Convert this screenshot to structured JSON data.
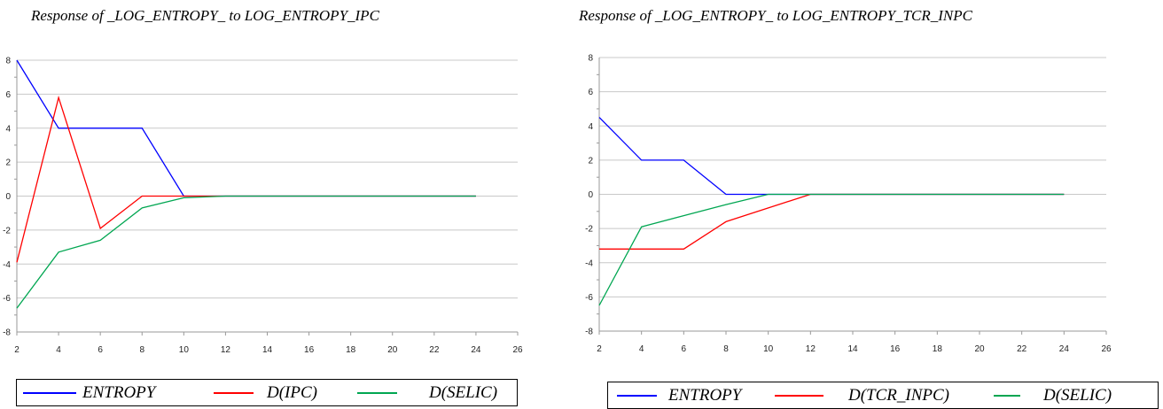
{
  "chart_data": [
    {
      "type": "line",
      "title": "Response of _LOG_ENTROPY_ to LOG_ENTROPY_IPC",
      "xlabel": "",
      "ylabel": "",
      "x": [
        2,
        4,
        6,
        8,
        10,
        12,
        14,
        16,
        18,
        20,
        22,
        24
      ],
      "xlim": [
        2,
        26
      ],
      "ylim": [
        -8,
        8
      ],
      "xticks": [
        "2",
        "4",
        "6",
        "8",
        "10",
        "12",
        "14",
        "16",
        "18",
        "20",
        "22",
        "24",
        "26"
      ],
      "yticks": [
        "8",
        "6",
        "4",
        "2",
        "0",
        "-2",
        "-4",
        "-6",
        "-8"
      ],
      "grid": "horizontal",
      "legend": "bottom",
      "series": [
        {
          "name": "ENTROPY",
          "color": "#0000ff",
          "values": [
            8,
            4,
            4,
            4,
            0,
            0,
            0,
            0,
            0,
            0,
            0,
            0
          ]
        },
        {
          "name": "D(IPC)",
          "color": "#ff0000",
          "values": [
            -3.9,
            5.8,
            -1.9,
            0,
            0,
            0,
            0,
            0,
            0,
            0,
            0,
            0
          ]
        },
        {
          "name": "D(SELIC)",
          "color": "#00a651",
          "values": [
            -6.6,
            -3.3,
            -2.6,
            -0.7,
            -0.1,
            0,
            0,
            0,
            0,
            0,
            0,
            0
          ]
        }
      ]
    },
    {
      "type": "line",
      "title": "Response of _LOG_ENTROPY_ to LOG_ENTROPY_TCR_INPC",
      "xlabel": "",
      "ylabel": "",
      "x": [
        2,
        4,
        6,
        8,
        10,
        12,
        14,
        16,
        18,
        20,
        22,
        24
      ],
      "xlim": [
        2,
        26
      ],
      "ylim": [
        -8,
        8
      ],
      "xticks": [
        "2",
        "4",
        "6",
        "8",
        "10",
        "12",
        "14",
        "16",
        "18",
        "20",
        "22",
        "24",
        "26"
      ],
      "yticks": [
        "8",
        "6",
        "4",
        "2",
        "0",
        "-2",
        "-4",
        "-6",
        "-8"
      ],
      "grid": "horizontal",
      "legend": "bottom",
      "series": [
        {
          "name": "ENTROPY",
          "color": "#0000ff",
          "values": [
            4.5,
            2,
            2,
            0,
            0,
            0,
            0,
            0,
            0,
            0,
            0,
            0
          ]
        },
        {
          "name": "D(TCR_INPC)",
          "color": "#ff0000",
          "values": [
            -3.2,
            -3.2,
            -3.2,
            -1.6,
            -0.8,
            0,
            0,
            0,
            0,
            0,
            0,
            0
          ]
        },
        {
          "name": "D(SELIC)",
          "color": "#00a651",
          "values": [
            -6.5,
            -1.9,
            -1.25,
            -0.6,
            0,
            0,
            0,
            0,
            0,
            0,
            0,
            0
          ]
        }
      ]
    }
  ]
}
